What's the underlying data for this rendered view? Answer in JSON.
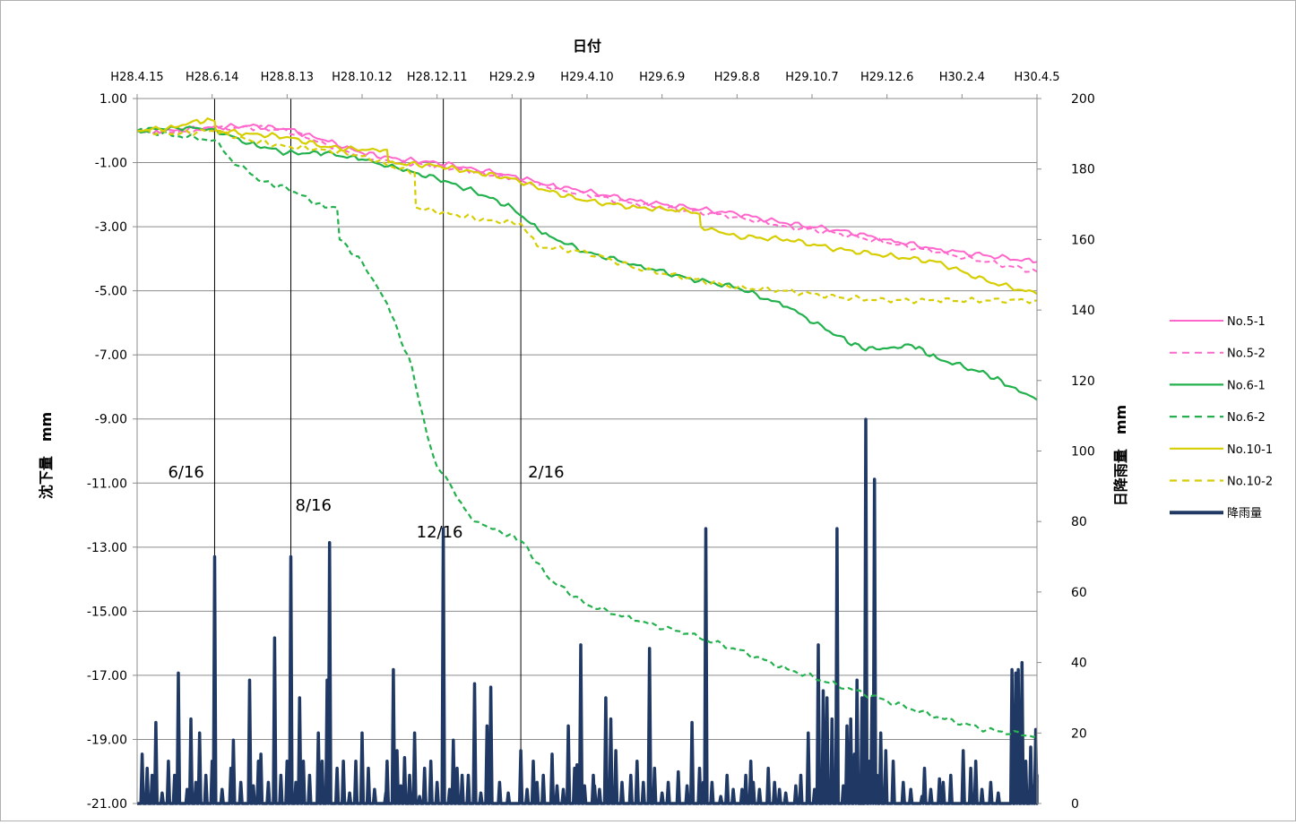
{
  "chart_data": {
    "type": "line",
    "xlabel": "日付",
    "ylabel_left": "沈下量　mm",
    "ylabel_right": "日降雨量　mm",
    "x_tick_labels": [
      "H28.4.15",
      "H28.6.14",
      "H28.8.13",
      "H28.10.12",
      "H28.12.11",
      "H29.2.9",
      "H29.4.10",
      "H29.6.9",
      "H29.8.8",
      "H29.10.7",
      "H29.12.6",
      "H30.2.4",
      "H30.4.5"
    ],
    "y_left_ticks": [
      "1.00",
      "-1.00",
      "-3.00",
      "-5.00",
      "-7.00",
      "-9.00",
      "-11.00",
      "-13.00",
      "-15.00",
      "-17.00",
      "-19.00",
      "-21.00"
    ],
    "y_left_range": [
      -21,
      1
    ],
    "y_right_ticks": [
      "200",
      "180",
      "160",
      "140",
      "120",
      "100",
      "80",
      "60",
      "40",
      "20",
      "0"
    ],
    "y_right_range": [
      0,
      200
    ],
    "x_range_days": [
      0,
      720
    ],
    "event_lines": [
      {
        "day": 62,
        "label": "6/16"
      },
      {
        "day": 123,
        "label": "8/16"
      },
      {
        "day": 245,
        "label": "12/16"
      },
      {
        "day": 307,
        "label": "2/16"
      }
    ],
    "series": [
      {
        "name": "No.5-1",
        "color": "#FF66CC",
        "dash": false,
        "width": 2,
        "points": [
          [
            0,
            0
          ],
          [
            30,
            0
          ],
          [
            60,
            0.1
          ],
          [
            90,
            0.15
          ],
          [
            120,
            0.05
          ],
          [
            150,
            -0.3
          ],
          [
            180,
            -0.7
          ],
          [
            210,
            -0.9
          ],
          [
            240,
            -1.0
          ],
          [
            270,
            -1.2
          ],
          [
            300,
            -1.4
          ],
          [
            330,
            -1.7
          ],
          [
            360,
            -1.9
          ],
          [
            400,
            -2.2
          ],
          [
            440,
            -2.4
          ],
          [
            480,
            -2.6
          ],
          [
            520,
            -2.9
          ],
          [
            560,
            -3.1
          ],
          [
            600,
            -3.4
          ],
          [
            640,
            -3.7
          ],
          [
            680,
            -3.9
          ],
          [
            720,
            -4.1
          ]
        ]
      },
      {
        "name": "No.5-2",
        "color": "#FF66CC",
        "dash": true,
        "width": 2,
        "points": [
          [
            0,
            0
          ],
          [
            30,
            -0.05
          ],
          [
            60,
            0.05
          ],
          [
            90,
            0.1
          ],
          [
            120,
            0
          ],
          [
            150,
            -0.4
          ],
          [
            180,
            -0.8
          ],
          [
            210,
            -1.0
          ],
          [
            240,
            -1.1
          ],
          [
            270,
            -1.3
          ],
          [
            300,
            -1.5
          ],
          [
            330,
            -1.8
          ],
          [
            360,
            -2.0
          ],
          [
            400,
            -2.3
          ],
          [
            440,
            -2.5
          ],
          [
            480,
            -2.7
          ],
          [
            520,
            -3.0
          ],
          [
            560,
            -3.2
          ],
          [
            600,
            -3.5
          ],
          [
            640,
            -3.8
          ],
          [
            680,
            -4.1
          ],
          [
            720,
            -4.4
          ]
        ]
      },
      {
        "name": "No.6-1",
        "color": "#22B14C",
        "dash": false,
        "width": 2.2,
        "points": [
          [
            0,
            0
          ],
          [
            30,
            0.1
          ],
          [
            60,
            0.05
          ],
          [
            90,
            -0.4
          ],
          [
            120,
            -0.7
          ],
          [
            150,
            -0.7
          ],
          [
            180,
            -0.9
          ],
          [
            210,
            -1.2
          ],
          [
            240,
            -1.5
          ],
          [
            270,
            -1.9
          ],
          [
            300,
            -2.4
          ],
          [
            315,
            -2.9
          ],
          [
            330,
            -3.3
          ],
          [
            360,
            -3.8
          ],
          [
            400,
            -4.2
          ],
          [
            440,
            -4.6
          ],
          [
            480,
            -4.9
          ],
          [
            520,
            -5.5
          ],
          [
            560,
            -6.4
          ],
          [
            580,
            -6.8
          ],
          [
            600,
            -6.8
          ],
          [
            620,
            -6.7
          ],
          [
            640,
            -7.1
          ],
          [
            680,
            -7.6
          ],
          [
            700,
            -8.0
          ],
          [
            720,
            -8.4
          ]
        ]
      },
      {
        "name": "No.6-2",
        "color": "#22B14C",
        "dash": true,
        "width": 2.2,
        "points": [
          [
            0,
            0
          ],
          [
            40,
            -0.2
          ],
          [
            62,
            -0.3
          ],
          [
            75,
            -0.9
          ],
          [
            100,
            -1.6
          ],
          [
            120,
            -1.8
          ],
          [
            150,
            -2.4
          ],
          [
            160,
            -2.4
          ],
          [
            162,
            -3.4
          ],
          [
            180,
            -4.1
          ],
          [
            200,
            -5.4
          ],
          [
            220,
            -7.4
          ],
          [
            232,
            -9.5
          ],
          [
            240,
            -10.5
          ],
          [
            250,
            -11.0
          ],
          [
            262,
            -11.8
          ],
          [
            270,
            -12.2
          ],
          [
            290,
            -12.5
          ],
          [
            307,
            -12.8
          ],
          [
            330,
            -14.0
          ],
          [
            360,
            -14.8
          ],
          [
            400,
            -15.3
          ],
          [
            440,
            -15.7
          ],
          [
            480,
            -16.2
          ],
          [
            520,
            -16.8
          ],
          [
            560,
            -17.3
          ],
          [
            600,
            -17.8
          ],
          [
            640,
            -18.3
          ],
          [
            680,
            -18.7
          ],
          [
            720,
            -18.9
          ]
        ]
      },
      {
        "name": "No.10-1",
        "color": "#D6CE00",
        "dash": false,
        "width": 2.2,
        "points": [
          [
            0,
            0
          ],
          [
            30,
            0.1
          ],
          [
            45,
            0.3
          ],
          [
            62,
            0.3
          ],
          [
            63,
            0.0
          ],
          [
            90,
            -0.1
          ],
          [
            120,
            -0.2
          ],
          [
            150,
            -0.5
          ],
          [
            180,
            -0.6
          ],
          [
            200,
            -0.6
          ],
          [
            201,
            -1.0
          ],
          [
            240,
            -1.1
          ],
          [
            270,
            -1.3
          ],
          [
            300,
            -1.5
          ],
          [
            330,
            -1.9
          ],
          [
            360,
            -2.2
          ],
          [
            400,
            -2.4
          ],
          [
            440,
            -2.5
          ],
          [
            450,
            -2.6
          ],
          [
            451,
            -3.0
          ],
          [
            480,
            -3.3
          ],
          [
            520,
            -3.4
          ],
          [
            560,
            -3.7
          ],
          [
            600,
            -3.9
          ],
          [
            640,
            -4.1
          ],
          [
            680,
            -4.7
          ],
          [
            720,
            -5.1
          ]
        ]
      },
      {
        "name": "No.10-2",
        "color": "#D6CE00",
        "dash": true,
        "width": 2.2,
        "points": [
          [
            0,
            0
          ],
          [
            30,
            -0.1
          ],
          [
            60,
            0.0
          ],
          [
            90,
            -0.3
          ],
          [
            120,
            -0.5
          ],
          [
            150,
            -0.6
          ],
          [
            180,
            -0.8
          ],
          [
            210,
            -1.2
          ],
          [
            222,
            -1.3
          ],
          [
            223,
            -2.4
          ],
          [
            250,
            -2.6
          ],
          [
            280,
            -2.8
          ],
          [
            307,
            -2.9
          ],
          [
            320,
            -3.6
          ],
          [
            360,
            -3.8
          ],
          [
            400,
            -4.3
          ],
          [
            440,
            -4.6
          ],
          [
            480,
            -4.9
          ],
          [
            520,
            -5.0
          ],
          [
            560,
            -5.2
          ],
          [
            600,
            -5.3
          ],
          [
            640,
            -5.3
          ],
          [
            680,
            -5.3
          ],
          [
            720,
            -5.3
          ]
        ]
      }
    ],
    "rainfall": {
      "name": "降雨量",
      "color": "#1F3864",
      "events": [
        [
          4,
          14
        ],
        [
          8,
          10
        ],
        [
          12,
          8
        ],
        [
          15,
          23
        ],
        [
          20,
          3
        ],
        [
          25,
          12
        ],
        [
          30,
          8
        ],
        [
          33,
          37
        ],
        [
          40,
          4
        ],
        [
          43,
          24
        ],
        [
          47,
          6
        ],
        [
          50,
          20
        ],
        [
          55,
          8
        ],
        [
          60,
          12
        ],
        [
          62,
          70
        ],
        [
          68,
          4
        ],
        [
          75,
          10
        ],
        [
          77,
          18
        ],
        [
          83,
          6
        ],
        [
          90,
          35
        ],
        [
          93,
          5
        ],
        [
          97,
          12
        ],
        [
          99,
          14
        ],
        [
          105,
          6
        ],
        [
          110,
          47
        ],
        [
          115,
          8
        ],
        [
          120,
          12
        ],
        [
          123,
          70
        ],
        [
          127,
          6
        ],
        [
          130,
          30
        ],
        [
          133,
          12
        ],
        [
          138,
          8
        ],
        [
          145,
          20
        ],
        [
          148,
          12
        ],
        [
          152,
          35
        ],
        [
          154,
          74
        ],
        [
          160,
          10
        ],
        [
          165,
          12
        ],
        [
          170,
          3
        ],
        [
          175,
          12
        ],
        [
          180,
          20
        ],
        [
          185,
          10
        ],
        [
          190,
          4
        ],
        [
          199,
          3
        ],
        [
          200,
          12
        ],
        [
          205,
          38
        ],
        [
          208,
          15
        ],
        [
          211,
          5
        ],
        [
          214,
          13
        ],
        [
          218,
          8
        ],
        [
          222,
          20
        ],
        [
          226,
          2
        ],
        [
          230,
          10
        ],
        [
          235,
          12
        ],
        [
          240,
          6
        ],
        [
          245,
          78
        ],
        [
          250,
          4
        ],
        [
          253,
          18
        ],
        [
          256,
          10
        ],
        [
          260,
          8
        ],
        [
          265,
          8
        ],
        [
          270,
          34
        ],
        [
          275,
          3
        ],
        [
          280,
          22
        ],
        [
          283,
          33
        ],
        [
          290,
          6
        ],
        [
          297,
          3
        ],
        [
          307,
          15
        ],
        [
          312,
          4
        ],
        [
          317,
          12
        ],
        [
          320,
          6
        ],
        [
          325,
          8
        ],
        [
          332,
          14
        ],
        [
          336,
          5
        ],
        [
          341,
          4
        ],
        [
          345,
          22
        ],
        [
          350,
          10
        ],
        [
          352,
          11
        ],
        [
          355,
          45
        ],
        [
          358,
          5
        ],
        [
          365,
          8
        ],
        [
          366,
          5
        ],
        [
          370,
          4
        ],
        [
          375,
          30
        ],
        [
          379,
          24
        ],
        [
          383,
          15
        ],
        [
          388,
          6
        ],
        [
          395,
          8
        ],
        [
          400,
          12
        ],
        [
          405,
          6
        ],
        [
          410,
          44
        ],
        [
          414,
          10
        ],
        [
          420,
          3
        ],
        [
          425,
          6
        ],
        [
          433,
          9
        ],
        [
          440,
          5
        ],
        [
          444,
          23
        ],
        [
          450,
          10
        ],
        [
          453,
          6
        ],
        [
          455,
          78
        ],
        [
          460,
          6
        ],
        [
          467,
          2
        ],
        [
          472,
          8
        ],
        [
          477,
          4
        ],
        [
          484,
          4
        ],
        [
          487,
          8
        ],
        [
          491,
          12
        ],
        [
          493,
          6
        ],
        [
          498,
          4
        ],
        [
          505,
          10
        ],
        [
          510,
          6
        ],
        [
          514,
          4
        ],
        [
          519,
          3
        ],
        [
          527,
          5
        ],
        [
          531,
          8
        ],
        [
          537,
          20
        ],
        [
          542,
          4
        ],
        [
          545,
          45
        ],
        [
          549,
          32
        ],
        [
          552,
          30
        ],
        [
          556,
          24
        ],
        [
          560,
          78
        ],
        [
          565,
          5
        ],
        [
          568,
          22
        ],
        [
          571,
          24
        ],
        [
          574,
          14
        ],
        [
          576,
          35
        ],
        [
          580,
          30
        ],
        [
          581,
          3
        ],
        [
          583,
          109
        ],
        [
          586,
          12
        ],
        [
          588,
          30
        ],
        [
          590,
          92
        ],
        [
          592,
          8
        ],
        [
          595,
          20
        ],
        [
          599,
          15
        ],
        [
          605,
          12
        ],
        [
          613,
          6
        ],
        [
          619,
          4
        ],
        [
          628,
          2
        ],
        [
          630,
          10
        ],
        [
          635,
          4
        ],
        [
          642,
          7
        ],
        [
          645,
          6
        ],
        [
          651,
          8
        ],
        [
          661,
          15
        ],
        [
          667,
          10
        ],
        [
          671,
          12
        ],
        [
          676,
          4
        ],
        [
          683,
          6
        ],
        [
          689,
          3
        ],
        [
          700,
          38
        ],
        [
          703,
          37
        ],
        [
          705,
          38
        ],
        [
          708,
          40
        ],
        [
          711,
          12
        ],
        [
          715,
          16
        ],
        [
          717,
          5
        ],
        [
          719,
          21
        ],
        [
          721,
          8
        ]
      ]
    },
    "legend": {
      "placement": "right"
    }
  }
}
